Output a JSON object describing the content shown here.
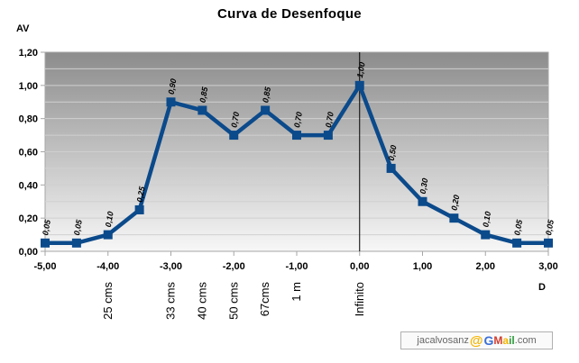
{
  "chart_data": {
    "type": "line",
    "title": "Curva de Desenfoque",
    "ylabel": "AV",
    "xlabel": "D",
    "xlim": [
      -5,
      3
    ],
    "ylim": [
      0,
      1.2
    ],
    "x_ticks": [
      "-5,00",
      "-4,00",
      "-3,00",
      "-2,00",
      "-1,00",
      "0,00",
      "1,00",
      "2,00",
      "3,00"
    ],
    "y_ticks": [
      "0,00",
      "0,20",
      "0,40",
      "0,60",
      "0,80",
      "1,00",
      "1,20"
    ],
    "grid": {
      "major_y": 0.2,
      "minor_y": 0.1,
      "vertical_line_at_x": 0
    },
    "distance_annotations": [
      {
        "x": -4.0,
        "label": "25 cms"
      },
      {
        "x": -3.0,
        "label": "33 cms"
      },
      {
        "x": -2.5,
        "label": "40 cms"
      },
      {
        "x": -2.0,
        "label": "50 cms"
      },
      {
        "x": -1.5,
        "label": "67cms"
      },
      {
        "x": -1.0,
        "label": "1 m"
      },
      {
        "x": 0.0,
        "label": "Infinito"
      }
    ],
    "series": [
      {
        "name": "AV",
        "color": "#0b4a8b",
        "x": [
          -5.0,
          -4.5,
          -4.0,
          -3.5,
          -3.0,
          -2.5,
          -2.0,
          -1.5,
          -1.0,
          -0.5,
          0.0,
          0.5,
          1.0,
          1.5,
          2.0,
          2.5,
          3.0
        ],
        "values": [
          0.05,
          0.05,
          0.1,
          0.25,
          0.9,
          0.85,
          0.7,
          0.85,
          0.7,
          0.7,
          1.0,
          0.5,
          0.3,
          0.2,
          0.1,
          0.05,
          0.05
        ],
        "labels": [
          "0,05",
          "0,05",
          "0,10",
          "0,25",
          "0,90",
          "0,85",
          "0,70",
          "0,85",
          "0,70",
          "0,70",
          "1,00",
          "0,50",
          "0,30",
          "0,20",
          "0,10",
          "0,05",
          "0,05"
        ]
      }
    ]
  },
  "watermark": {
    "user": "jacalvosanz",
    "at": "@",
    "g": "G",
    "m": "M",
    "a": "a",
    "il": "il",
    "domain": ".com"
  }
}
